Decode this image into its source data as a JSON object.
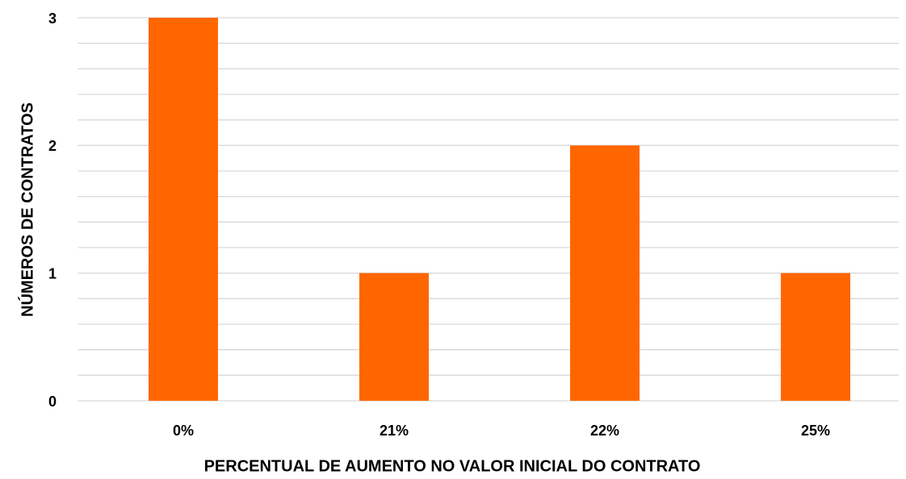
{
  "chart_data": {
    "type": "bar",
    "x_label": "PERCENTUAL DE AUMENTO NO VALOR  INICIAL DO CONTRATO",
    "y_label": "NÚMEROS DE CONTRATOS",
    "categories": [
      "0%",
      "21%",
      "22%",
      "25%"
    ],
    "values": [
      3,
      1,
      2,
      1
    ],
    "color": "#ff6600",
    "ylim": [
      0,
      3
    ],
    "yticks": [
      0,
      1,
      2,
      3
    ],
    "minor_yticks": [
      0.2,
      0.4,
      0.6,
      0.8,
      1.2,
      1.4,
      1.6,
      1.8,
      2.2,
      2.4,
      2.6,
      2.8
    ],
    "grid": true
  }
}
